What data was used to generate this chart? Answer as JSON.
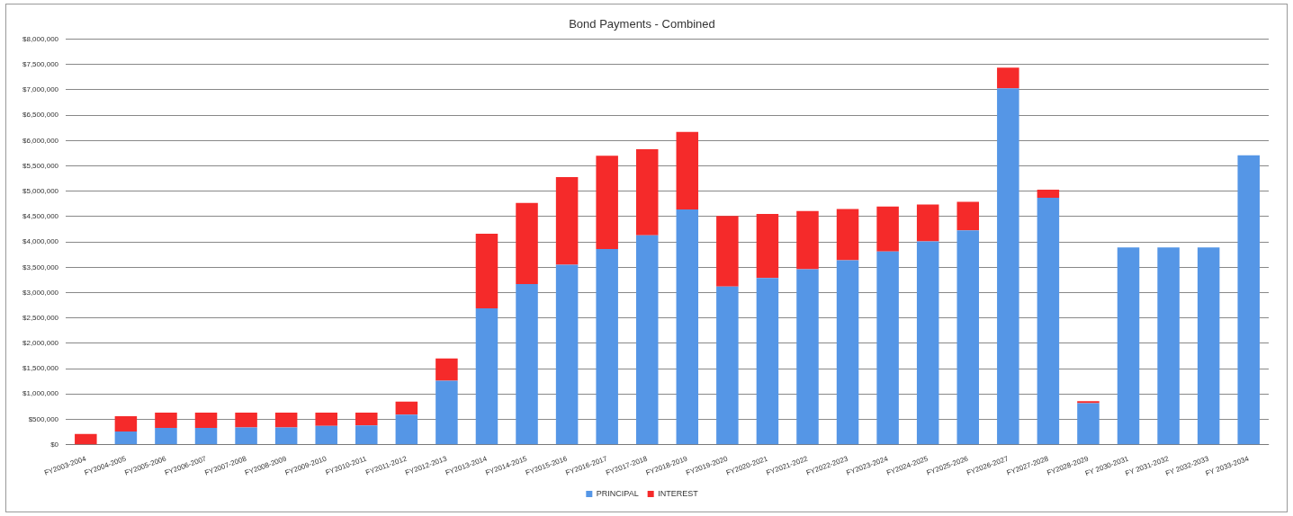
{
  "chart_data": {
    "type": "bar",
    "title": "Bond Payments - Combined",
    "stacked": true,
    "categories": [
      "FY2003-2004",
      "FY2004-2005",
      "FY2005-2006",
      "FY2006-2007",
      "FY2007-2008",
      "FY2008-2009",
      "FY2009-2010",
      "FY2010-2011",
      "FY2011-2012",
      "FY2012-2013",
      "FY2013-2014",
      "FY2014-2015",
      "FY2015-2016",
      "FY2016-2017",
      "FY2017-2018",
      "FY2018-2019",
      "FY2019-2020",
      "FY2020-2021",
      "FY2021-2022",
      "FY2022-2023",
      "FY2023-2024",
      "FY2024-2025",
      "FY2025-2026",
      "FY2026-2027",
      "FY2027-2028",
      "FY2028-2029",
      "FY 2030-2031",
      "FY 2031-2032",
      "FY 2032-2033",
      "FY 2033-2034"
    ],
    "series": [
      {
        "name": "PRINCIPAL",
        "color": "#5596e6",
        "values": [
          0,
          260000,
          330000,
          330000,
          340000,
          340000,
          370000,
          380000,
          590000,
          1260000,
          2690000,
          3170000,
          3550000,
          3860000,
          4130000,
          4640000,
          3120000,
          3290000,
          3460000,
          3640000,
          3810000,
          4010000,
          4230000,
          7030000,
          4870000,
          820000,
          3890000,
          3890000,
          3890000,
          5710000
        ]
      },
      {
        "name": "INTEREST",
        "color": "#f52a2a",
        "values": [
          210000,
          300000,
          300000,
          300000,
          290000,
          290000,
          260000,
          250000,
          260000,
          440000,
          1470000,
          1600000,
          1730000,
          1840000,
          1700000,
          1530000,
          1390000,
          1260000,
          1150000,
          1010000,
          890000,
          730000,
          560000,
          410000,
          160000,
          40000,
          0,
          0,
          0,
          0
        ]
      }
    ],
    "ylim": [
      0,
      8000000
    ],
    "yticks": [
      {
        "value": 0,
        "label": "$0"
      },
      {
        "value": 500000,
        "label": "$500,000"
      },
      {
        "value": 1000000,
        "label": "$1,000,000"
      },
      {
        "value": 1500000,
        "label": "$1,500,000"
      },
      {
        "value": 2000000,
        "label": "$2,000,000"
      },
      {
        "value": 2500000,
        "label": "$2,500,000"
      },
      {
        "value": 3000000,
        "label": "$3,000,000"
      },
      {
        "value": 3500000,
        "label": "$3,500,000"
      },
      {
        "value": 4000000,
        "label": "$4,000,000"
      },
      {
        "value": 4500000,
        "label": "$4,500,000"
      },
      {
        "value": 5000000,
        "label": "$5,000,000"
      },
      {
        "value": 5500000,
        "label": "$5,500,000"
      },
      {
        "value": 6000000,
        "label": "$6,000,000"
      },
      {
        "value": 6500000,
        "label": "$6,500,000"
      },
      {
        "value": 7000000,
        "label": "$7,000,000"
      },
      {
        "value": 7500000,
        "label": "$7,500,000"
      },
      {
        "value": 8000000,
        "label": "$8,000,000"
      }
    ],
    "grid": "y",
    "legend": "bottom"
  }
}
